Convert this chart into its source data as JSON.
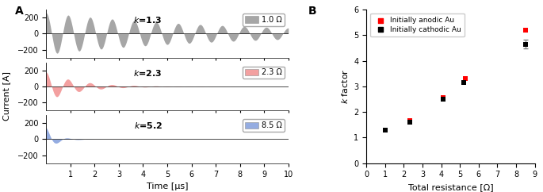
{
  "panel_A_label": "A",
  "panel_B_label": "B",
  "waveforms": [
    {
      "k": "1.3",
      "R_label": "1.0 Ω",
      "color": "#888888",
      "amplitude": 260,
      "decay": 0.13,
      "freq": 1.1,
      "phase": 1.57
    },
    {
      "k": "2.3",
      "R_label": "2.3 Ω",
      "color": "#f08080",
      "amplitude": 180,
      "decay": 0.75,
      "freq": 1.1,
      "phase": 1.57
    },
    {
      "k": "5.2",
      "R_label": "8.5 Ω",
      "color": "#7090d8",
      "amplitude": 145,
      "decay": 2.5,
      "freq": 1.1,
      "phase": 1.57
    }
  ],
  "scatter": {
    "red_x": [
      1.0,
      2.3,
      4.1,
      5.3,
      8.5
    ],
    "red_y": [
      1.3,
      1.65,
      2.55,
      3.3,
      5.2
    ],
    "black_x": [
      1.0,
      2.3,
      4.1,
      5.2,
      8.5
    ],
    "black_y": [
      1.28,
      1.6,
      2.5,
      3.15,
      4.65
    ],
    "black_yerr": [
      0.0,
      0.0,
      0.0,
      0.0,
      0.17
    ],
    "xlabel": "Total resistance [Ω]",
    "ylabel": "k factor",
    "xlim": [
      0,
      9
    ],
    "ylim": [
      0,
      6
    ],
    "red_label": "Initially anodic Au",
    "black_label": "Initially cathodic Au"
  },
  "ylabel_left": "Current [A]",
  "xlabel_bottom": "Time [µs]",
  "time_max": 10,
  "ylim_wave": [
    -300,
    300
  ],
  "yticks_wave": [
    -200,
    0,
    200
  ],
  "xticks": [
    1,
    2,
    3,
    4,
    5,
    6,
    7,
    8,
    9,
    10
  ],
  "background_color": "#ffffff"
}
